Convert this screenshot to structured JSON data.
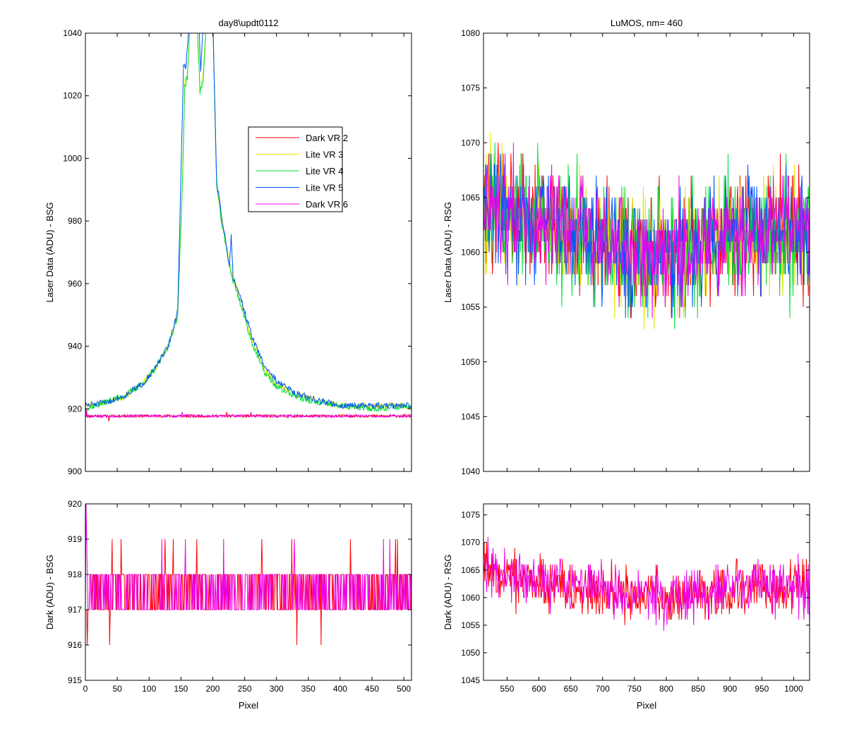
{
  "figure_bg": "#ffffff",
  "chart_data": [
    {
      "id": "bsg_laser",
      "type": "line",
      "title": "day8\\updt0112",
      "xlabel": "",
      "ylabel": "Laser Data (ADU) - BSG",
      "xlim": [
        0,
        512
      ],
      "ylim": [
        900,
        1040
      ],
      "xticks": [
        0,
        50,
        100,
        150,
        200,
        250,
        300,
        350,
        400,
        450,
        500
      ],
      "xtick_labels_visible": false,
      "yticks": [
        900,
        920,
        940,
        960,
        980,
        1000,
        1020,
        1040
      ],
      "grid": false,
      "legend": {
        "placement": "upper-right-inside",
        "entries": [
          "Dark VR 2",
          "Lite VR 3",
          "Lite VR 4",
          "Lite VR 5",
          "Dark VR 6"
        ]
      },
      "series": [
        {
          "name": "Dark VR 2",
          "color": "#ff0000",
          "kind": "flat",
          "baseline": 917.7,
          "noise": 0.9,
          "seed": 11,
          "spikes": [
            [
              2,
              919
            ],
            [
              37,
              916
            ],
            [
              222,
              919
            ]
          ]
        },
        {
          "name": "Lite VR 3",
          "color": "#e6e600",
          "kind": "peak",
          "seed": 23,
          "noise": 1.0,
          "profile": [
            [
              0,
              921
            ],
            [
              30,
              922
            ],
            [
              60,
              924
            ],
            [
              90,
              928
            ],
            [
              110,
              933
            ],
            [
              130,
              940
            ],
            [
              145,
              950
            ],
            [
              152,
              990
            ],
            [
              156,
              1024
            ],
            [
              160,
              1027
            ],
            [
              165,
              1045
            ],
            [
              175,
              1045
            ],
            [
              180,
              1022
            ],
            [
              185,
              1026
            ],
            [
              190,
              1045
            ],
            [
              200,
              1045
            ],
            [
              206,
              992
            ],
            [
              215,
              980
            ],
            [
              230,
              963
            ],
            [
              240,
              957
            ],
            [
              260,
              943
            ],
            [
              280,
              933
            ],
            [
              300,
              928
            ],
            [
              330,
              925
            ],
            [
              360,
              923
            ],
            [
              400,
              921
            ],
            [
              450,
              921
            ],
            [
              512,
              921
            ]
          ]
        },
        {
          "name": "Lite VR 4",
          "color": "#00dd33",
          "kind": "peak",
          "seed": 37,
          "noise": 1.0,
          "profile": [
            [
              0,
              920
            ],
            [
              30,
              922
            ],
            [
              60,
              924
            ],
            [
              90,
              928
            ],
            [
              110,
              933
            ],
            [
              130,
              940
            ],
            [
              145,
              950
            ],
            [
              152,
              990
            ],
            [
              156,
              1023
            ],
            [
              160,
              1026
            ],
            [
              165,
              1045
            ],
            [
              175,
              1045
            ],
            [
              180,
              1021
            ],
            [
              185,
              1025
            ],
            [
              190,
              1045
            ],
            [
              200,
              1045
            ],
            [
              206,
              991
            ],
            [
              215,
              978
            ],
            [
              230,
              962
            ],
            [
              240,
              956
            ],
            [
              260,
              942
            ],
            [
              280,
              932
            ],
            [
              300,
              927
            ],
            [
              330,
              924
            ],
            [
              360,
              922
            ],
            [
              400,
              921
            ],
            [
              450,
              920
            ],
            [
              512,
              921
            ]
          ]
        },
        {
          "name": "Lite VR 5",
          "color": "#0055ff",
          "kind": "peak",
          "seed": 51,
          "noise": 1.0,
          "profile": [
            [
              0,
              921
            ],
            [
              30,
              922
            ],
            [
              60,
              924
            ],
            [
              90,
              928
            ],
            [
              110,
              933
            ],
            [
              130,
              940
            ],
            [
              145,
              951
            ],
            [
              150,
              995
            ],
            [
              154,
              1030
            ],
            [
              158,
              1029
            ],
            [
              163,
              1045
            ],
            [
              178,
              1045
            ],
            [
              181,
              1027
            ],
            [
              184,
              1040
            ],
            [
              188,
              1045
            ],
            [
              200,
              1045
            ],
            [
              206,
              993
            ],
            [
              215,
              980
            ],
            [
              226,
              966
            ],
            [
              229,
              975
            ],
            [
              232,
              962
            ],
            [
              240,
              958
            ],
            [
              260,
              944
            ],
            [
              280,
              934
            ],
            [
              300,
              929
            ],
            [
              330,
              925
            ],
            [
              360,
              923
            ],
            [
              400,
              921
            ],
            [
              450,
              921
            ],
            [
              512,
              921
            ]
          ]
        },
        {
          "name": "Dark VR 6",
          "color": "#ee00ee",
          "kind": "flat",
          "baseline": 917.7,
          "noise": 0.9,
          "seed": 67,
          "spikes": [
            [
              1,
              920
            ],
            [
              152,
              919
            ],
            [
              260,
              919
            ]
          ]
        }
      ]
    },
    {
      "id": "rsg_laser",
      "type": "line",
      "title": "LuMOS, nm= 460",
      "xlabel": "",
      "ylabel": "Laser Data (ADU) - RSG",
      "xlim": [
        513,
        1025
      ],
      "ylim": [
        1040,
        1080
      ],
      "xticks": [
        550,
        600,
        650,
        700,
        750,
        800,
        850,
        900,
        950,
        1000
      ],
      "xtick_labels_visible": false,
      "yticks": [
        1040,
        1045,
        1050,
        1055,
        1060,
        1065,
        1070,
        1075,
        1080
      ],
      "grid": false,
      "series": [
        {
          "name": "Dark VR 2",
          "color": "#ff0000",
          "kind": "noise",
          "baseline": 1061,
          "start_bump": 4,
          "noise": 3.2,
          "seed": 101
        },
        {
          "name": "Lite VR 3",
          "color": "#e6e600",
          "kind": "noise",
          "baseline": 1061,
          "start_bump": 4,
          "noise": 3.4,
          "seed": 113
        },
        {
          "name": "Lite VR 4",
          "color": "#00dd33",
          "kind": "noise",
          "baseline": 1061,
          "start_bump": 4,
          "noise": 3.4,
          "seed": 127
        },
        {
          "name": "Lite VR 5",
          "color": "#0055ff",
          "kind": "noise",
          "baseline": 1061,
          "start_bump": 4,
          "noise": 3.2,
          "seed": 131
        },
        {
          "name": "Dark VR 6",
          "color": "#ee00ee",
          "kind": "noise",
          "baseline": 1061,
          "start_bump": 4,
          "noise": 3.0,
          "seed": 149
        }
      ]
    },
    {
      "id": "bsg_dark",
      "type": "line",
      "title": "",
      "xlabel": "Pixel",
      "ylabel": "Dark (ADU) - BSG",
      "xlim": [
        0,
        512
      ],
      "ylim": [
        915,
        920
      ],
      "xticks": [
        0,
        50,
        100,
        150,
        200,
        250,
        300,
        350,
        400,
        450,
        500
      ],
      "xtick_labels_visible": true,
      "yticks": [
        915,
        916,
        917,
        918,
        919,
        920
      ],
      "grid": false,
      "series": [
        {
          "name": "Dark VR 2",
          "color": "#ff0000",
          "kind": "binary",
          "low": 917,
          "high": 918,
          "seed": 211,
          "spikes": [
            [
              3,
              916
            ],
            [
              38,
              916
            ],
            [
              42,
              919
            ],
            [
              56,
              919
            ],
            [
              125,
              919
            ],
            [
              138,
              919
            ],
            [
              175,
              919
            ],
            [
              277,
              919
            ],
            [
              324,
              919
            ],
            [
              332,
              916
            ],
            [
              370,
              916
            ],
            [
              416,
              919
            ],
            [
              487,
              919
            ],
            [
              490,
              919
            ]
          ]
        },
        {
          "name": "Dark VR 6",
          "color": "#ee00ee",
          "kind": "binary",
          "low": 917,
          "high": 918,
          "seed": 223,
          "spikes": [
            [
              1,
              920
            ],
            [
              2,
              919
            ],
            [
              120,
              919
            ],
            [
              157,
              919
            ],
            [
              217,
              919
            ],
            [
              328,
              919
            ],
            [
              468,
              919
            ],
            [
              478,
              919
            ]
          ]
        }
      ]
    },
    {
      "id": "rsg_dark",
      "type": "line",
      "title": "",
      "xlabel": "Pixel",
      "ylabel": "Dark (ADU) - RSG",
      "xlim": [
        513,
        1025
      ],
      "ylim": [
        1045,
        1077
      ],
      "xticks": [
        550,
        600,
        650,
        700,
        750,
        800,
        850,
        900,
        950,
        1000
      ],
      "xtick_labels_visible": true,
      "yticks": [
        1045,
        1050,
        1055,
        1060,
        1065,
        1070,
        1075
      ],
      "grid": false,
      "series": [
        {
          "name": "Dark VR 2",
          "color": "#ff0000",
          "kind": "noise",
          "baseline": 1061,
          "start_bump": 4,
          "noise": 3.0,
          "seed": 301
        },
        {
          "name": "Dark VR 6",
          "color": "#ee00ee",
          "kind": "noise",
          "baseline": 1061,
          "start_bump": 4,
          "noise": 3.0,
          "seed": 317
        }
      ]
    }
  ]
}
